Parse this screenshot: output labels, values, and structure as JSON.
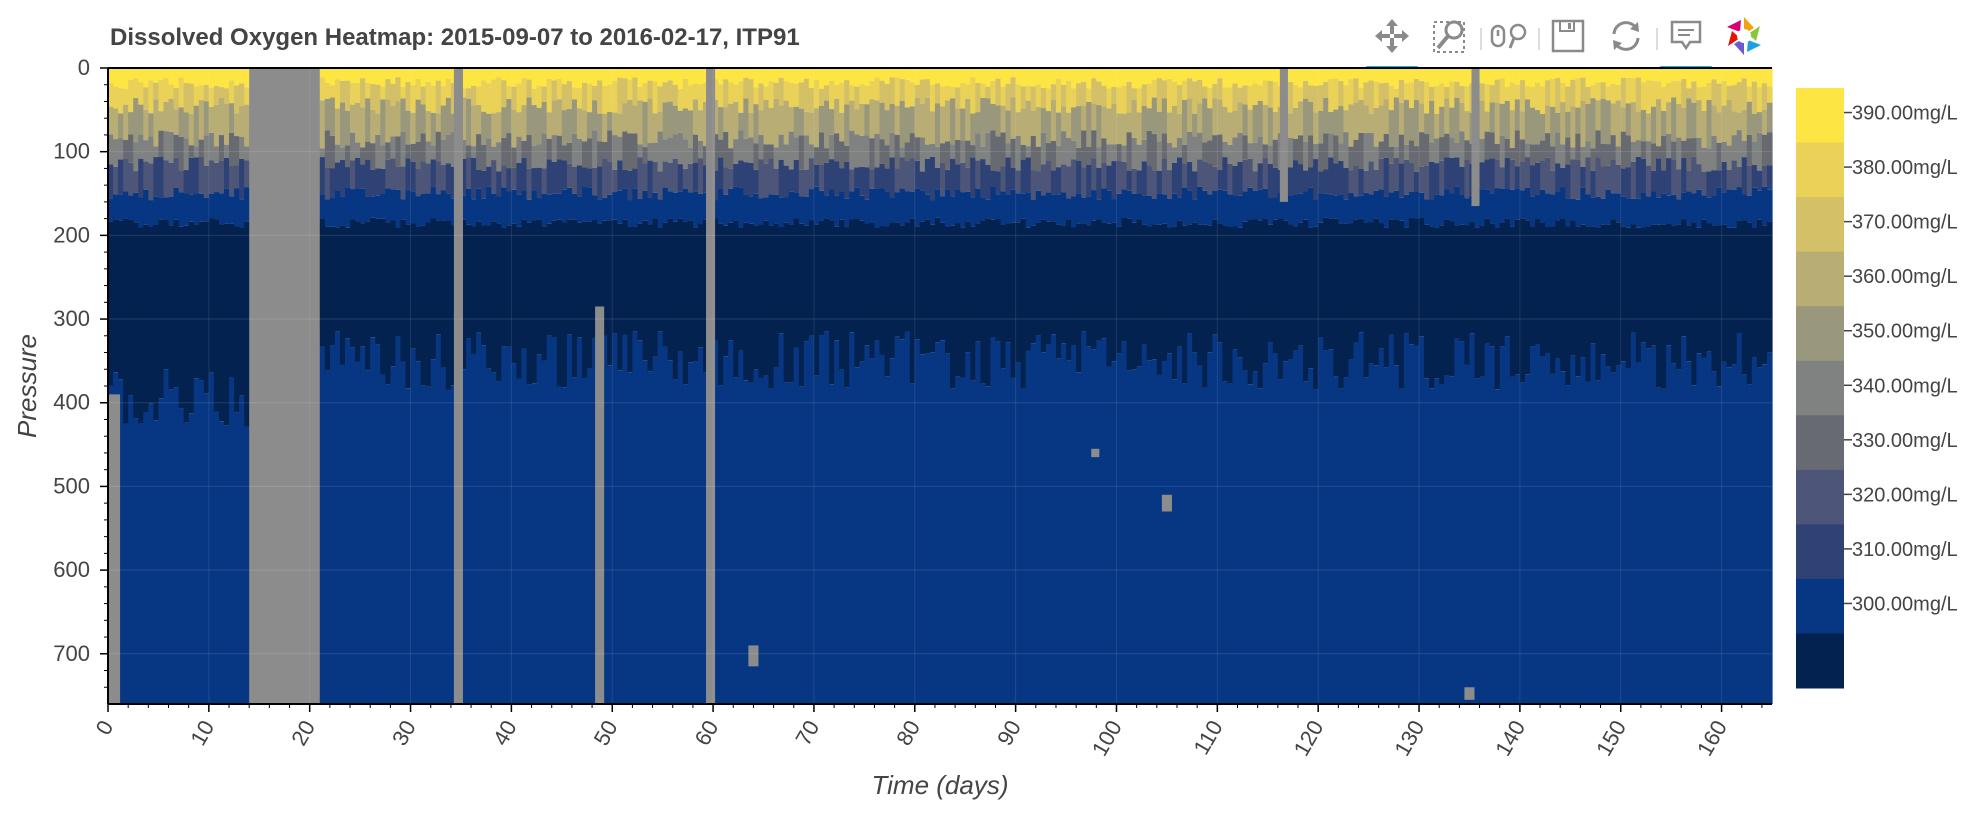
{
  "toolbar": {
    "tools": [
      {
        "name": "pan-tool",
        "icon": "move-arrows-icon",
        "active": true
      },
      {
        "name": "box-zoom-tool",
        "icon": "box-zoom-icon",
        "active": false
      },
      {
        "name": "wheel-zoom-tool",
        "icon": "wheel-zoom-icon",
        "active": false
      },
      {
        "name": "save-tool",
        "icon": "save-icon",
        "active": false
      },
      {
        "name": "reset-tool",
        "icon": "reset-icon",
        "active": false
      },
      {
        "name": "hover-tool",
        "icon": "hover-tooltip-icon",
        "active": true
      },
      {
        "name": "bokeh-logo",
        "icon": "bokeh-logo-icon",
        "active": false
      }
    ]
  },
  "chart_data": {
    "type": "heatmap",
    "title": "Dissolved Oxygen Heatmap: 2015-09-07 to 2016-02-17, ITP91",
    "xlabel": "Time (days)",
    "ylabel": "Pressure",
    "xlim": [
      0,
      165
    ],
    "ylim": [
      760,
      0
    ],
    "y_inverted": true,
    "x_ticks": [
      "0",
      "10",
      "20",
      "30",
      "40",
      "50",
      "60",
      "70",
      "80",
      "90",
      "100",
      "110",
      "120",
      "130",
      "140",
      "150",
      "160"
    ],
    "y_ticks": [
      "0",
      "100",
      "200",
      "300",
      "400",
      "500",
      "600",
      "700"
    ],
    "grid": true,
    "colorbar": {
      "placement": "right",
      "labels": [
        "390.00mg/L",
        "380.00mg/L",
        "370.00mg/L",
        "360.00mg/L",
        "350.00mg/L",
        "340.00mg/L",
        "330.00mg/L",
        "320.00mg/L",
        "310.00mg/L",
        "300.00mg/L"
      ],
      "colors": [
        "#fde543",
        "#e9d257",
        "#d3c067",
        "#b8ad75",
        "#9a987c",
        "#7f8281",
        "#686a72",
        "#4d5578",
        "#2f4276",
        "#073683",
        "#04224f"
      ]
    },
    "missing_color": "#8c8c8c",
    "layer_boundaries": [
      {
        "name": "above-380",
        "pressure": 18
      },
      {
        "name": "above-360",
        "pressure": 45
      },
      {
        "name": "above-340",
        "pressure": 85
      },
      {
        "name": "above-320",
        "pressure": 115
      },
      {
        "name": "above-310",
        "pressure": 150
      },
      {
        "name": "above-300",
        "pressure": 185
      },
      {
        "name": "below-300-bottom",
        "pressure": 350
      }
    ],
    "missing_columns": [
      {
        "x": [
          0,
          1.2
        ],
        "pressure_from": 390,
        "pressure_to": 760
      },
      {
        "x": [
          14,
          21
        ],
        "pressure_from": 0,
        "pressure_to": 760
      },
      {
        "x": [
          34.3,
          35.2
        ],
        "pressure_from": 0,
        "pressure_to": 760
      },
      {
        "x": [
          48.3,
          49.2
        ],
        "pressure_from": 285,
        "pressure_to": 760
      },
      {
        "x": [
          59.3,
          60.2
        ],
        "pressure_from": 0,
        "pressure_to": 760
      },
      {
        "x": [
          116.2,
          117
        ],
        "pressure_from": 0,
        "pressure_to": 160
      },
      {
        "x": [
          135.2,
          136
        ],
        "pressure_from": 0,
        "pressure_to": 165
      },
      {
        "x": [
          97.5,
          98.3
        ],
        "pressure_from": 455,
        "pressure_to": 465
      },
      {
        "x": [
          104.5,
          105.5
        ],
        "pressure_from": 510,
        "pressure_to": 530
      },
      {
        "x": [
          63.5,
          64.5
        ],
        "pressure_from": 690,
        "pressure_to": 715
      },
      {
        "x": [
          134.5,
          135.5
        ],
        "pressure_from": 740,
        "pressure_to": 755
      }
    ]
  }
}
